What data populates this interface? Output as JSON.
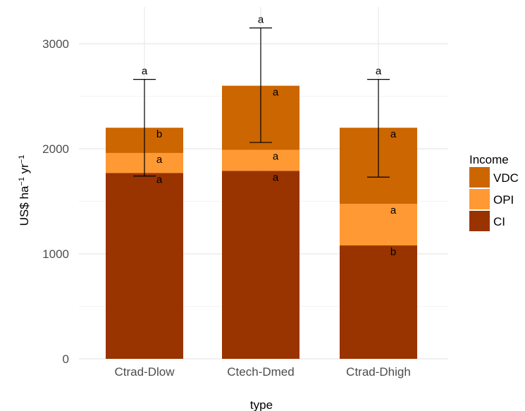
{
  "chart_data": {
    "type": "bar",
    "stacked": true,
    "xlabel": "type",
    "ylabel": "US$ ha−1 yr−1",
    "ylabel_parts": {
      "unit": "US$ ha",
      "exp1": "−1",
      "mid": " yr",
      "exp2": "−1"
    },
    "ylim": [
      0,
      3300
    ],
    "yticks": [
      0,
      1000,
      2000,
      3000
    ],
    "grid": true,
    "categories": [
      "Ctrad-Dlow",
      "Ctech-Dmed",
      "Ctrad-Dhigh"
    ],
    "series": [
      {
        "name": "CI",
        "color": "#993300",
        "values": [
          1770,
          1790,
          1080
        ],
        "letters": [
          "a",
          "a",
          "b"
        ]
      },
      {
        "name": "OPI",
        "color": "#ff9933",
        "values": [
          190,
          200,
          395
        ],
        "letters": [
          "a",
          "a",
          "a"
        ]
      },
      {
        "name": "VDC",
        "color": "#cc6600",
        "values": [
          240,
          610,
          725
        ],
        "letters": [
          "b",
          "a",
          "a"
        ]
      }
    ],
    "totals": [
      2200,
      2600,
      2200
    ],
    "error_bars": [
      {
        "low": 1740,
        "high": 2660,
        "letter": "a"
      },
      {
        "low": 2060,
        "high": 3150,
        "letter": "a"
      },
      {
        "low": 1730,
        "high": 2660,
        "letter": "a"
      }
    ],
    "legend": {
      "title": "Income",
      "placement": "right",
      "entries": [
        "VDC",
        "OPI",
        "CI"
      ]
    }
  }
}
